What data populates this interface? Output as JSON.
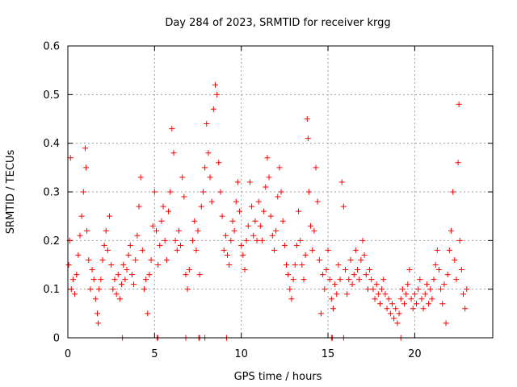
{
  "chart_data": {
    "type": "scatter",
    "title": "Day 284 of 2023, SRMTID for receiver krgg",
    "xlabel": "GPS time / hours",
    "ylabel": "SRMTID / TECUs",
    "xlim": [
      0,
      24.5
    ],
    "ylim": [
      0,
      0.6
    ],
    "xticks": [
      0,
      5,
      10,
      15,
      20
    ],
    "xtick_labels": [
      "0",
      "5",
      "10",
      "15",
      "20"
    ],
    "yticks": [
      0,
      0.1,
      0.2,
      0.3,
      0.4,
      0.5,
      0.6
    ],
    "ytick_labels": [
      "0",
      "0.1",
      "0.2",
      "0.3",
      "0.4",
      "0.5",
      "0.6"
    ],
    "grid": true,
    "marker": "+",
    "color": "#ff0000",
    "series": [
      {
        "name": "SRMTID",
        "points": [
          [
            0.05,
            0.15
          ],
          [
            0.1,
            0.2
          ],
          [
            0.15,
            0.37
          ],
          [
            0.2,
            0.1
          ],
          [
            0.3,
            0.12
          ],
          [
            0.4,
            0.09
          ],
          [
            0.5,
            0.13
          ],
          [
            0.6,
            0.17
          ],
          [
            0.7,
            0.21
          ],
          [
            0.8,
            0.25
          ],
          [
            0.9,
            0.3
          ],
          [
            1.0,
            0.39
          ],
          [
            1.05,
            0.35
          ],
          [
            1.1,
            0.22
          ],
          [
            1.2,
            0.16
          ],
          [
            1.3,
            0.1
          ],
          [
            1.4,
            0.14
          ],
          [
            1.5,
            0.12
          ],
          [
            1.6,
            0.08
          ],
          [
            1.7,
            0.05
          ],
          [
            1.75,
            0.03
          ],
          [
            1.8,
            0.1
          ],
          [
            1.9,
            0.12
          ],
          [
            2.0,
            0.16
          ],
          [
            2.1,
            0.19
          ],
          [
            2.2,
            0.22
          ],
          [
            2.3,
            0.18
          ],
          [
            2.4,
            0.25
          ],
          [
            2.5,
            0.15
          ],
          [
            2.6,
            0.1
          ],
          [
            2.7,
            0.12
          ],
          [
            2.8,
            0.09
          ],
          [
            2.9,
            0.13
          ],
          [
            3.0,
            0.08
          ],
          [
            3.1,
            0.11
          ],
          [
            3.2,
            0.15
          ],
          [
            3.3,
            0.12
          ],
          [
            3.4,
            0.14
          ],
          [
            3.5,
            0.17
          ],
          [
            3.6,
            0.19
          ],
          [
            3.7,
            0.13
          ],
          [
            3.8,
            0.11
          ],
          [
            3.9,
            0.16
          ],
          [
            4.0,
            0.21
          ],
          [
            4.1,
            0.27
          ],
          [
            4.2,
            0.33
          ],
          [
            4.3,
            0.18
          ],
          [
            4.4,
            0.1
          ],
          [
            4.5,
            0.12
          ],
          [
            4.6,
            0.05
          ],
          [
            4.7,
            0.13
          ],
          [
            4.8,
            0.16
          ],
          [
            4.9,
            0.23
          ],
          [
            5.0,
            0.3
          ],
          [
            5.1,
            0.22
          ],
          [
            5.2,
            0.15
          ],
          [
            5.3,
            0.19
          ],
          [
            5.4,
            0.24
          ],
          [
            5.5,
            0.27
          ],
          [
            5.6,
            0.2
          ],
          [
            5.7,
            0.16
          ],
          [
            5.8,
            0.26
          ],
          [
            5.9,
            0.3
          ],
          [
            6.0,
            0.43
          ],
          [
            6.1,
            0.38
          ],
          [
            6.2,
            0.2
          ],
          [
            6.3,
            0.18
          ],
          [
            6.4,
            0.22
          ],
          [
            6.5,
            0.19
          ],
          [
            6.6,
            0.33
          ],
          [
            6.7,
            0.29
          ],
          [
            6.8,
            0.13
          ],
          [
            6.9,
            0.1
          ],
          [
            7.0,
            0.14
          ],
          [
            7.2,
            0.2
          ],
          [
            7.3,
            0.24
          ],
          [
            7.4,
            0.18
          ],
          [
            7.5,
            0.22
          ],
          [
            7.6,
            0.13
          ],
          [
            7.7,
            0.27
          ],
          [
            7.8,
            0.3
          ],
          [
            7.9,
            0.35
          ],
          [
            8.0,
            0.44
          ],
          [
            8.1,
            0.38
          ],
          [
            8.2,
            0.33
          ],
          [
            8.3,
            0.28
          ],
          [
            8.4,
            0.47
          ],
          [
            8.5,
            0.52
          ],
          [
            8.6,
            0.5
          ],
          [
            8.7,
            0.36
          ],
          [
            8.8,
            0.3
          ],
          [
            8.9,
            0.25
          ],
          [
            9.0,
            0.18
          ],
          [
            9.1,
            0.21
          ],
          [
            9.2,
            0.17
          ],
          [
            9.3,
            0.15
          ],
          [
            9.4,
            0.2
          ],
          [
            9.5,
            0.24
          ],
          [
            9.6,
            0.22
          ],
          [
            9.7,
            0.28
          ],
          [
            9.8,
            0.32
          ],
          [
            9.9,
            0.26
          ],
          [
            10.0,
            0.19
          ],
          [
            10.1,
            0.17
          ],
          [
            10.2,
            0.14
          ],
          [
            10.3,
            0.2
          ],
          [
            10.4,
            0.23
          ],
          [
            10.5,
            0.32
          ],
          [
            10.6,
            0.27
          ],
          [
            10.7,
            0.21
          ],
          [
            10.8,
            0.24
          ],
          [
            10.9,
            0.2
          ],
          [
            11.0,
            0.28
          ],
          [
            11.1,
            0.23
          ],
          [
            11.2,
            0.2
          ],
          [
            11.3,
            0.26
          ],
          [
            11.4,
            0.31
          ],
          [
            11.5,
            0.37
          ],
          [
            11.6,
            0.33
          ],
          [
            11.7,
            0.25
          ],
          [
            11.8,
            0.21
          ],
          [
            11.9,
            0.18
          ],
          [
            12.0,
            0.22
          ],
          [
            12.1,
            0.29
          ],
          [
            12.2,
            0.35
          ],
          [
            12.3,
            0.3
          ],
          [
            12.4,
            0.24
          ],
          [
            12.5,
            0.19
          ],
          [
            12.6,
            0.15
          ],
          [
            12.7,
            0.13
          ],
          [
            12.8,
            0.1
          ],
          [
            12.9,
            0.08
          ],
          [
            13.0,
            0.12
          ],
          [
            13.1,
            0.15
          ],
          [
            13.2,
            0.19
          ],
          [
            13.3,
            0.26
          ],
          [
            13.4,
            0.2
          ],
          [
            13.5,
            0.15
          ],
          [
            13.6,
            0.12
          ],
          [
            13.7,
            0.17
          ],
          [
            13.8,
            0.45
          ],
          [
            13.85,
            0.41
          ],
          [
            13.9,
            0.3
          ],
          [
            14.0,
            0.23
          ],
          [
            14.1,
            0.18
          ],
          [
            14.2,
            0.22
          ],
          [
            14.3,
            0.35
          ],
          [
            14.4,
            0.28
          ],
          [
            14.5,
            0.16
          ],
          [
            14.6,
            0.05
          ],
          [
            14.7,
            0.13
          ],
          [
            14.8,
            0.1
          ],
          [
            14.9,
            0.14
          ],
          [
            15.0,
            0.18
          ],
          [
            15.1,
            0.12
          ],
          [
            15.2,
            0.08
          ],
          [
            15.3,
            0.06
          ],
          [
            15.4,
            0.11
          ],
          [
            15.5,
            0.09
          ],
          [
            15.6,
            0.15
          ],
          [
            15.7,
            0.12
          ],
          [
            15.8,
            0.32
          ],
          [
            15.9,
            0.27
          ],
          [
            16.0,
            0.14
          ],
          [
            16.1,
            0.09
          ],
          [
            16.2,
            0.12
          ],
          [
            16.3,
            0.16
          ],
          [
            16.4,
            0.11
          ],
          [
            16.5,
            0.13
          ],
          [
            16.6,
            0.18
          ],
          [
            16.7,
            0.14
          ],
          [
            16.8,
            0.12
          ],
          [
            16.9,
            0.16
          ],
          [
            17.0,
            0.2
          ],
          [
            17.1,
            0.17
          ],
          [
            17.2,
            0.13
          ],
          [
            17.3,
            0.1
          ],
          [
            17.4,
            0.14
          ],
          [
            17.5,
            0.12
          ],
          [
            17.6,
            0.1
          ],
          [
            17.7,
            0.08
          ],
          [
            17.8,
            0.11
          ],
          [
            17.9,
            0.09
          ],
          [
            18.0,
            0.07
          ],
          [
            18.1,
            0.1
          ],
          [
            18.2,
            0.12
          ],
          [
            18.3,
            0.09
          ],
          [
            18.4,
            0.06
          ],
          [
            18.5,
            0.08
          ],
          [
            18.6,
            0.05
          ],
          [
            18.7,
            0.07
          ],
          [
            18.8,
            0.04
          ],
          [
            18.9,
            0.06
          ],
          [
            19.0,
            0.03
          ],
          [
            19.1,
            0.05
          ],
          [
            19.2,
            0.08
          ],
          [
            19.3,
            0.1
          ],
          [
            19.4,
            0.07
          ],
          [
            19.5,
            0.09
          ],
          [
            19.6,
            0.11
          ],
          [
            19.7,
            0.14
          ],
          [
            19.8,
            0.08
          ],
          [
            19.9,
            0.06
          ],
          [
            20.0,
            0.09
          ],
          [
            20.1,
            0.07
          ],
          [
            20.2,
            0.1
          ],
          [
            20.3,
            0.12
          ],
          [
            20.4,
            0.08
          ],
          [
            20.5,
            0.06
          ],
          [
            20.6,
            0.09
          ],
          [
            20.7,
            0.11
          ],
          [
            20.8,
            0.07
          ],
          [
            20.9,
            0.1
          ],
          [
            21.0,
            0.08
          ],
          [
            21.1,
            0.12
          ],
          [
            21.2,
            0.15
          ],
          [
            21.3,
            0.18
          ],
          [
            21.4,
            0.14
          ],
          [
            21.5,
            0.1
          ],
          [
            21.6,
            0.07
          ],
          [
            21.7,
            0.11
          ],
          [
            21.8,
            0.03
          ],
          [
            21.9,
            0.13
          ],
          [
            22.0,
            0.18
          ],
          [
            22.1,
            0.22
          ],
          [
            22.2,
            0.3
          ],
          [
            22.3,
            0.16
          ],
          [
            22.4,
            0.12
          ],
          [
            22.5,
            0.36
          ],
          [
            22.55,
            0.48
          ],
          [
            22.6,
            0.2
          ],
          [
            22.7,
            0.14
          ],
          [
            22.8,
            0.09
          ],
          [
            22.9,
            0.06
          ],
          [
            23.0,
            0.1
          ]
        ],
        "zero_points": [
          3.15,
          5.15,
          5.2,
          6.8,
          7.55,
          7.6,
          7.9,
          9.15,
          15.2,
          15.25,
          15.9,
          19.2
        ]
      }
    ]
  }
}
